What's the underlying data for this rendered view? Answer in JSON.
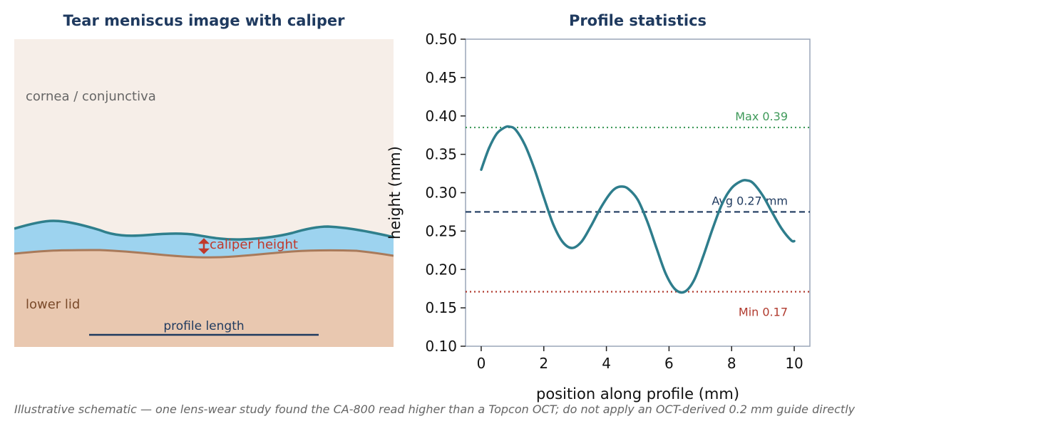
{
  "schematic": {
    "title": "Tear meniscus image with caliper",
    "label_cornea": "cornea / conjunctiva",
    "label_lid": "lower lid",
    "label_caliper": "caliper height",
    "label_profile": "profile length",
    "colors": {
      "background": "#f6eee8",
      "tear": "#9dd3ef",
      "tear_edge": "#2f7f8c",
      "lid": "#e9c8b0",
      "lid_edge": "#a97a5a",
      "caliper": "#c0392b",
      "profile_line": "#1f3a5f"
    }
  },
  "chart_data": {
    "type": "line",
    "title": "Profile statistics",
    "xlabel": "position along profile (mm)",
    "ylabel": "height (mm)",
    "xlim": [
      -0.5,
      10.5
    ],
    "ylim": [
      0.1,
      0.5
    ],
    "xticks": [
      0,
      2,
      4,
      6,
      8,
      10
    ],
    "yticks": [
      0.1,
      0.15,
      0.2,
      0.25,
      0.3,
      0.35,
      0.4,
      0.45,
      0.5
    ],
    "ytick_labels": [
      "0.10",
      "0.15",
      "0.20",
      "0.25",
      "0.30",
      "0.35",
      "0.40",
      "0.45",
      "0.50"
    ],
    "grid": false,
    "series": [
      {
        "x": [
          0,
          0.25,
          0.5,
          0.75,
          0.9,
          1.1,
          1.4,
          1.7,
          2.0,
          2.3,
          2.6,
          2.9,
          3.2,
          3.5,
          3.8,
          4.1,
          4.3,
          4.5,
          4.7,
          5.0,
          5.3,
          5.6,
          5.9,
          6.2,
          6.5,
          6.8,
          7.1,
          7.4,
          7.7,
          8.0,
          8.3,
          8.5,
          8.7,
          9.0,
          9.3,
          9.6,
          9.9,
          10.0
        ],
        "y": [
          0.33,
          0.358,
          0.377,
          0.385,
          0.386,
          0.382,
          0.362,
          0.331,
          0.294,
          0.259,
          0.236,
          0.228,
          0.236,
          0.256,
          0.279,
          0.298,
          0.306,
          0.308,
          0.305,
          0.291,
          0.263,
          0.228,
          0.194,
          0.174,
          0.171,
          0.186,
          0.218,
          0.254,
          0.286,
          0.306,
          0.315,
          0.316,
          0.312,
          0.296,
          0.274,
          0.253,
          0.238,
          0.237
        ],
        "color": "#2e7d8c"
      }
    ],
    "reference_lines": [
      {
        "y": 0.385,
        "label": "Max 0.39",
        "color": "#3f9a5a",
        "style": "dotted"
      },
      {
        "y": 0.275,
        "label": "Avg 0.27 mm",
        "color": "#1f3a5f",
        "style": "dashed"
      },
      {
        "y": 0.171,
        "label": "Min 0.17",
        "color": "#b03a2e",
        "style": "dotted"
      }
    ],
    "axis_color": "#9aa5b8"
  },
  "footnote": "Illustrative schematic — one lens-wear study found the CA-800 read higher than a Topcon OCT; do not apply an OCT-derived 0.2 mm guide directly"
}
